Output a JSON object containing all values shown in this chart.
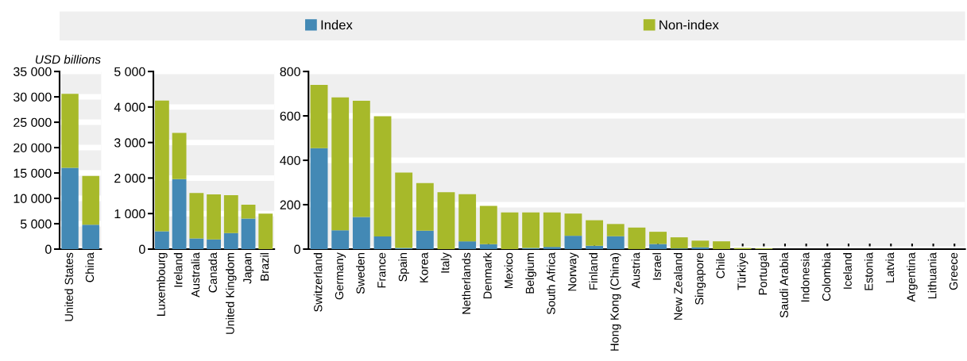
{
  "chart_data": [
    {
      "type": "bar",
      "stacked": true,
      "ylabel": "USD billions",
      "legend": "top",
      "grid": "y",
      "categories": [
        "United States",
        "China"
      ],
      "series": [
        {
          "name": "Index",
          "color": "#4389b5",
          "values": [
            16000,
            4800
          ]
        },
        {
          "name": "Non-index",
          "color": "#a7b92a",
          "values": [
            14600,
            9600
          ]
        }
      ],
      "ylim": [
        0,
        35000
      ],
      "yticks": [
        0,
        {
          "value": 5000,
          "label": "5 000"
        },
        {
          "value": 10000,
          "label": "10 000"
        },
        {
          "value": 15000,
          "label": "15 000"
        },
        {
          "value": 20000,
          "label": "20 000"
        },
        {
          "value": 25000,
          "label": "25 000"
        },
        {
          "value": 30000,
          "label": "30 000"
        },
        {
          "value": 35000,
          "label": "35 000"
        }
      ]
    },
    {
      "type": "bar",
      "stacked": true,
      "grid": "y",
      "categories": [
        "Luxembourg",
        "Ireland",
        "Australia",
        "Canada",
        "United Kingdom",
        "Japan",
        "Brazil"
      ],
      "series": [
        {
          "color": "#4389b5",
          "values": [
            500,
            1970,
            300,
            270,
            450,
            860,
            0
          ]
        },
        {
          "color": "#a7b92a",
          "values": [
            3680,
            1300,
            1280,
            1270,
            1070,
            390,
            1000
          ]
        }
      ],
      "ylim": [
        0,
        5000
      ],
      "yticks": [
        0,
        {
          "value": 1000,
          "label": "1 000"
        },
        {
          "value": 2000,
          "label": "2 000"
        },
        {
          "value": 3000,
          "label": "3 000"
        },
        {
          "value": 4000,
          "label": "4 000"
        },
        {
          "value": 5000,
          "label": "5 000"
        }
      ]
    },
    {
      "type": "bar",
      "stacked": true,
      "grid": "y",
      "categories": [
        "Switzerland",
        "Germany",
        "Sweden",
        "France",
        "Spain",
        "Korea",
        "Italy",
        "Netherlands",
        "Denmark",
        "Mexico",
        "Belgium",
        "South Africa",
        "Norway",
        "Finland",
        "Hong Kong (China)",
        "Austria",
        "Israel",
        "New Zealand",
        "Singapore",
        "Chile",
        "Türkiye",
        "Portugal",
        "Saudi Arabia",
        "Indonesia",
        "Colombia",
        "Iceland",
        "Estonia",
        "Latvia",
        "Argentina",
        "Lithuania",
        "Greece"
      ],
      "series": [
        {
          "color": "#4389b5",
          "values": [
            455,
            85,
            145,
            57,
            5,
            83,
            0,
            35,
            22,
            0,
            5,
            10,
            60,
            15,
            58,
            0,
            23,
            3,
            8,
            0,
            0,
            0,
            0,
            0,
            0,
            0,
            0,
            0,
            0,
            0,
            0
          ]
        },
        {
          "color": "#a7b92a",
          "values": [
            285,
            598,
            523,
            541,
            340,
            214,
            256,
            212,
            173,
            165,
            160,
            155,
            100,
            115,
            55,
            97,
            55,
            50,
            30,
            35,
            5,
            3,
            0,
            0,
            0,
            0,
            0,
            0,
            0,
            0,
            0
          ]
        }
      ],
      "ylim": [
        0,
        800
      ],
      "yticks": [
        0,
        200,
        400,
        600,
        800
      ]
    }
  ]
}
